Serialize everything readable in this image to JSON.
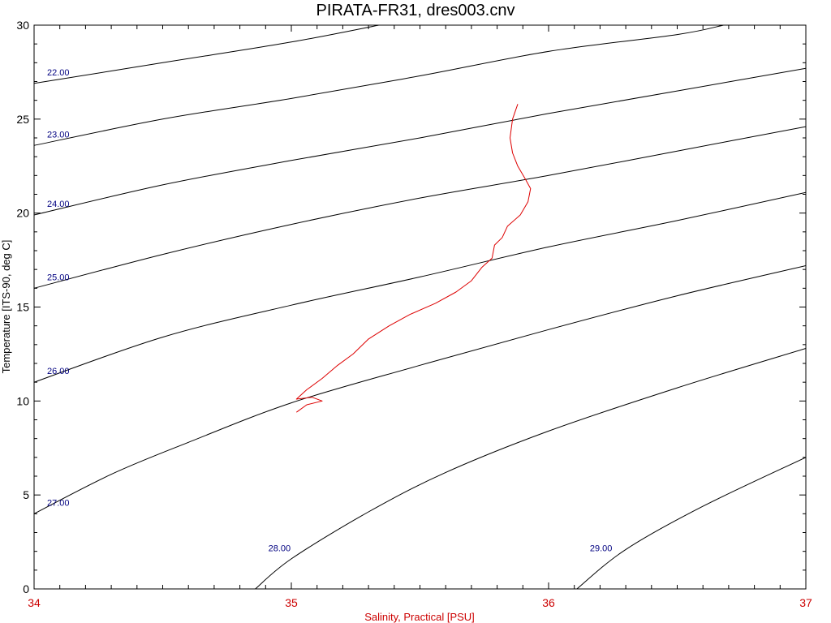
{
  "chart_data": {
    "type": "line",
    "title": "PIRATA-FR31, dres003.cnv",
    "xlabel": "Salinity, Practical [PSU]",
    "ylabel": "Temperature [ITS-90, deg C]",
    "xlim": [
      34,
      37
    ],
    "ylim": [
      0,
      30
    ],
    "x_ticks": [
      "34",
      "35",
      "36",
      "37"
    ],
    "y_ticks": [
      "0",
      "5",
      "10",
      "15",
      "20",
      "25",
      "30"
    ],
    "grid": false,
    "colors": {
      "profile": "#dd0000",
      "x_axis_text": "#cc0000",
      "isopycnal": "#000000",
      "isopycnal_label": "#000080",
      "frame": "#000000"
    },
    "isopycnals": [
      {
        "label": "22.00",
        "points": [
          [
            34.0,
            26.9
          ],
          [
            34.5,
            28.0
          ],
          [
            35.0,
            29.1
          ],
          [
            35.34,
            30.0
          ]
        ]
      },
      {
        "label": "23.00",
        "points": [
          [
            34.0,
            23.6
          ],
          [
            34.5,
            25.0
          ],
          [
            35.0,
            26.1
          ],
          [
            35.5,
            27.3
          ],
          [
            36.0,
            28.6
          ],
          [
            36.5,
            29.5
          ],
          [
            36.68,
            30.0
          ]
        ]
      },
      {
        "label": "24.00",
        "points": [
          [
            34.0,
            19.9
          ],
          [
            34.5,
            21.5
          ],
          [
            35.0,
            22.8
          ],
          [
            35.5,
            24.0
          ],
          [
            36.0,
            25.3
          ],
          [
            36.5,
            26.5
          ],
          [
            37.0,
            27.7
          ]
        ]
      },
      {
        "label": "25.00",
        "points": [
          [
            34.0,
            16.0
          ],
          [
            34.5,
            17.8
          ],
          [
            35.0,
            19.4
          ],
          [
            35.5,
            20.8
          ],
          [
            36.0,
            22.0
          ],
          [
            36.5,
            23.3
          ],
          [
            37.0,
            24.6
          ]
        ]
      },
      {
        "label": "26.00",
        "points": [
          [
            34.0,
            11.0
          ],
          [
            34.5,
            13.4
          ],
          [
            35.0,
            15.1
          ],
          [
            35.5,
            16.6
          ],
          [
            36.0,
            18.2
          ],
          [
            36.5,
            19.6
          ],
          [
            37.0,
            21.1
          ]
        ]
      },
      {
        "label": "27.00",
        "points": [
          [
            34.0,
            4.0
          ],
          [
            34.3,
            6.1
          ],
          [
            34.6,
            7.8
          ],
          [
            35.0,
            9.9
          ],
          [
            35.5,
            11.9
          ],
          [
            36.0,
            13.8
          ],
          [
            36.5,
            15.6
          ],
          [
            37.0,
            17.2
          ]
        ]
      },
      {
        "label": "28.00",
        "points": [
          [
            34.86,
            0.0
          ],
          [
            35.0,
            1.6
          ],
          [
            35.3,
            4.1
          ],
          [
            35.6,
            6.2
          ],
          [
            36.0,
            8.4
          ],
          [
            36.5,
            10.7
          ],
          [
            37.0,
            12.8
          ]
        ]
      },
      {
        "label": "29.00",
        "points": [
          [
            36.11,
            0.0
          ],
          [
            36.3,
            2.1
          ],
          [
            36.6,
            4.4
          ],
          [
            37.0,
            7.0
          ]
        ]
      }
    ],
    "series": [
      {
        "points": [
          [
            35.88,
            25.8
          ],
          [
            35.86,
            25.0
          ],
          [
            35.85,
            24.0
          ],
          [
            35.86,
            23.2
          ],
          [
            35.88,
            22.5
          ],
          [
            35.91,
            21.8
          ],
          [
            35.93,
            21.3
          ],
          [
            35.92,
            20.6
          ],
          [
            35.89,
            19.9
          ],
          [
            35.84,
            19.3
          ],
          [
            35.82,
            18.7
          ],
          [
            35.79,
            18.3
          ],
          [
            35.78,
            17.6
          ],
          [
            35.74,
            17.1
          ],
          [
            35.7,
            16.4
          ],
          [
            35.64,
            15.8
          ],
          [
            35.56,
            15.2
          ],
          [
            35.46,
            14.6
          ],
          [
            35.38,
            14.0
          ],
          [
            35.3,
            13.3
          ],
          [
            35.24,
            12.5
          ],
          [
            35.18,
            11.9
          ],
          [
            35.12,
            11.2
          ],
          [
            35.06,
            10.6
          ],
          [
            35.02,
            10.1
          ],
          [
            35.08,
            10.2
          ],
          [
            35.12,
            10.0
          ],
          [
            35.06,
            9.8
          ],
          [
            35.02,
            9.4
          ]
        ]
      }
    ]
  }
}
